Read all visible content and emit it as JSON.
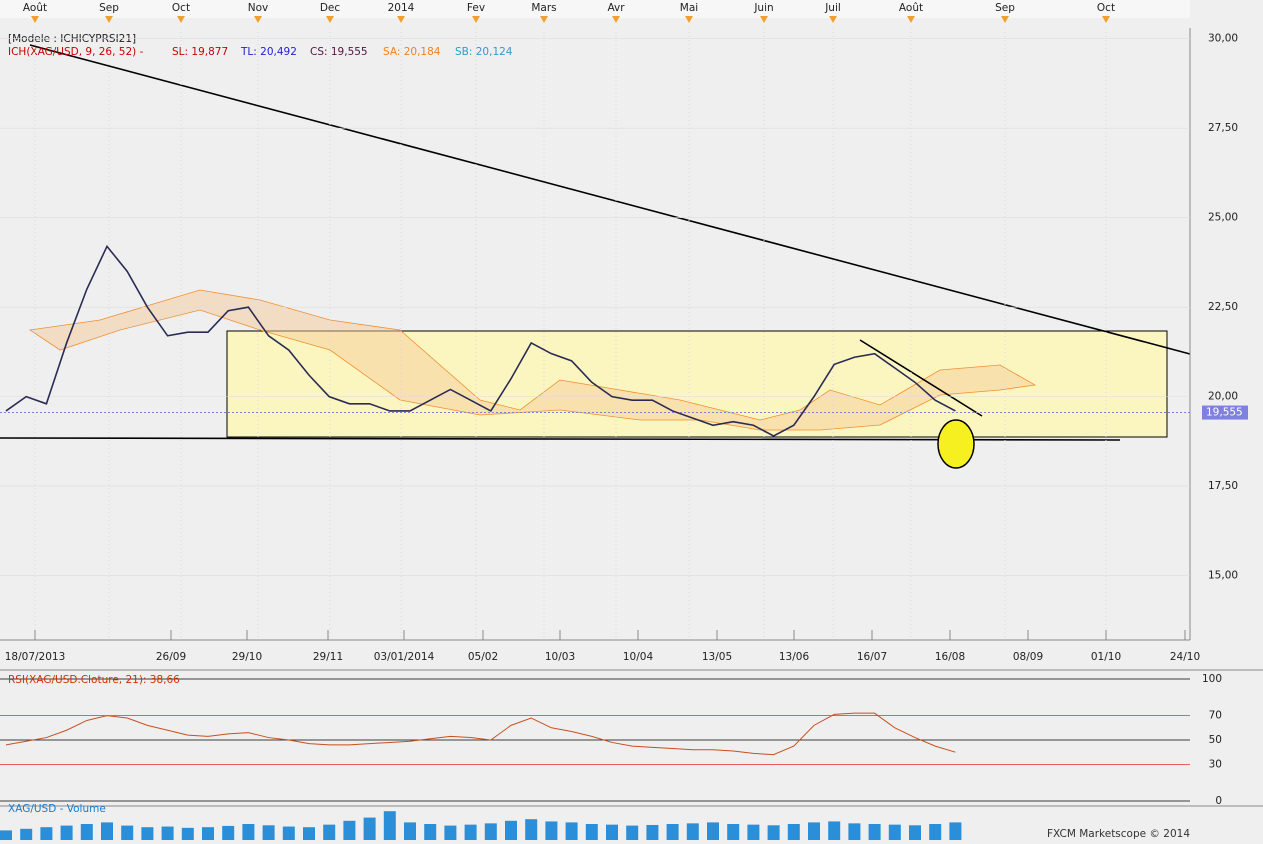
{
  "header": {
    "model": "[Modele : ICHICYPRSI21]",
    "indicator": "ICH(XAG/USD, 9, 26, 52) -",
    "sl": "SL: 19,877",
    "tl": "TL: 20,492",
    "cs": "CS: 19,555",
    "sa": "SA: 20,184",
    "sb": "SB: 20,124",
    "copyright": "FXCM Marketscope © 2014"
  },
  "chart_data": [
    {
      "type": "line",
      "top_labels": [
        "Août",
        "Sep",
        "Oct",
        "Nov",
        "Dec",
        "2014",
        "Fev",
        "Mars",
        "Avr",
        "Mai",
        "Juin",
        "Juil",
        "Août",
        "Sep",
        "Oct"
      ],
      "date_labels": [
        "18/07/2013",
        "26/09",
        "29/10",
        "29/11",
        "03/01/2014",
        "05/02",
        "10/03",
        "10/04",
        "13/05",
        "13/06",
        "16/07",
        "16/08",
        "08/09",
        "01/10",
        "24/10"
      ],
      "values": [
        19.6,
        20.0,
        19.8,
        21.5,
        23.0,
        24.2,
        23.5,
        22.5,
        21.7,
        21.8,
        21.8,
        22.4,
        22.5,
        21.7,
        21.3,
        20.6,
        20.0,
        19.8,
        19.8,
        19.6,
        19.6,
        19.9,
        20.2,
        19.9,
        19.6,
        20.5,
        21.5,
        21.2,
        21.0,
        20.4,
        20.0,
        19.9,
        19.9,
        19.6,
        19.4,
        19.2,
        19.3,
        19.2,
        18.9,
        19.2,
        20.0,
        20.9,
        21.1,
        21.2,
        20.8,
        20.4,
        19.9,
        19.6
      ],
      "color": "#2b2b55",
      "ylim": [
        13.2,
        30.3
      ],
      "yticks": [
        {
          "value": 15,
          "label": "15,00"
        },
        {
          "value": 17.5,
          "label": "17,50"
        },
        {
          "value": 20,
          "label": "20,00"
        },
        {
          "value": 22.5,
          "label": "22,50"
        },
        {
          "value": 25,
          "label": "25,00"
        },
        {
          "value": 27.5,
          "label": "27,50"
        },
        {
          "value": 30,
          "label": "30,00"
        }
      ],
      "last_price": {
        "value": 19.555,
        "label": "19,555"
      }
    },
    {
      "type": "line",
      "title": "RSI(XAG/USD.Cloture, 21): 38,66",
      "values": [
        46,
        49,
        52,
        58,
        66,
        70,
        68,
        62,
        58,
        54,
        53,
        55,
        56,
        52,
        50,
        47,
        46,
        46,
        47,
        48,
        49,
        51,
        53,
        52,
        50,
        62,
        68,
        60,
        57,
        53,
        48,
        45,
        44,
        43,
        42,
        42,
        41,
        39,
        38,
        45,
        62,
        71,
        72,
        72,
        60,
        52,
        45,
        40
      ],
      "color": "#c8501e",
      "ylim": [
        0,
        100
      ],
      "yticks": [
        0,
        30,
        50,
        70,
        100
      ],
      "ytick_colors": [
        "#000000",
        "#e03030",
        "#000000",
        "#e03030",
        "#000000"
      ]
    },
    {
      "type": "bar",
      "title": "XAG/USD - Volume",
      "values": [
        30,
        35,
        40,
        45,
        50,
        55,
        45,
        40,
        42,
        38,
        40,
        44,
        50,
        46,
        42,
        40,
        48,
        60,
        70,
        90,
        55,
        50,
        45,
        48,
        52,
        60,
        65,
        58,
        55,
        50,
        48,
        45,
        47,
        50,
        52,
        55,
        50,
        48,
        46,
        50,
        55,
        58,
        52,
        50,
        48,
        46,
        50,
        55
      ],
      "color": "#2a8fd8",
      "ylim": [
        0,
        100
      ]
    }
  ]
}
